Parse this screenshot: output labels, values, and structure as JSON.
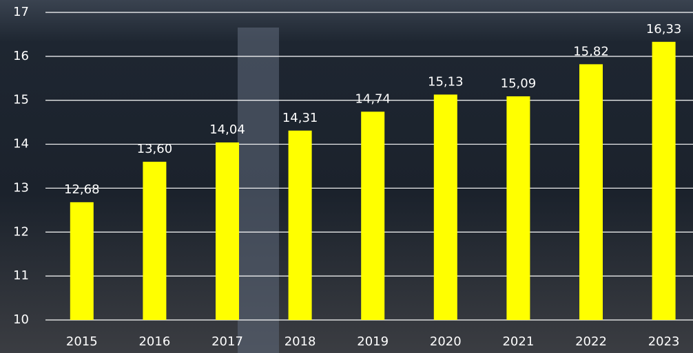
{
  "chart_data": {
    "type": "bar",
    "categories": [
      "2015",
      "2016",
      "2017",
      "2018",
      "2019",
      "2020",
      "2021",
      "2022",
      "2023"
    ],
    "values": [
      12.68,
      13.6,
      14.04,
      14.31,
      14.74,
      15.13,
      15.09,
      15.82,
      16.33
    ],
    "value_labels": [
      "12,68",
      "13,60",
      "14,04",
      "14,31",
      "14,74",
      "15,13",
      "15,09",
      "15,82",
      "16,33"
    ],
    "color": "#ffff00",
    "ylim": [
      10,
      17
    ],
    "yticks": [
      10,
      11,
      12,
      13,
      14,
      15,
      16,
      17
    ],
    "grid": true
  }
}
